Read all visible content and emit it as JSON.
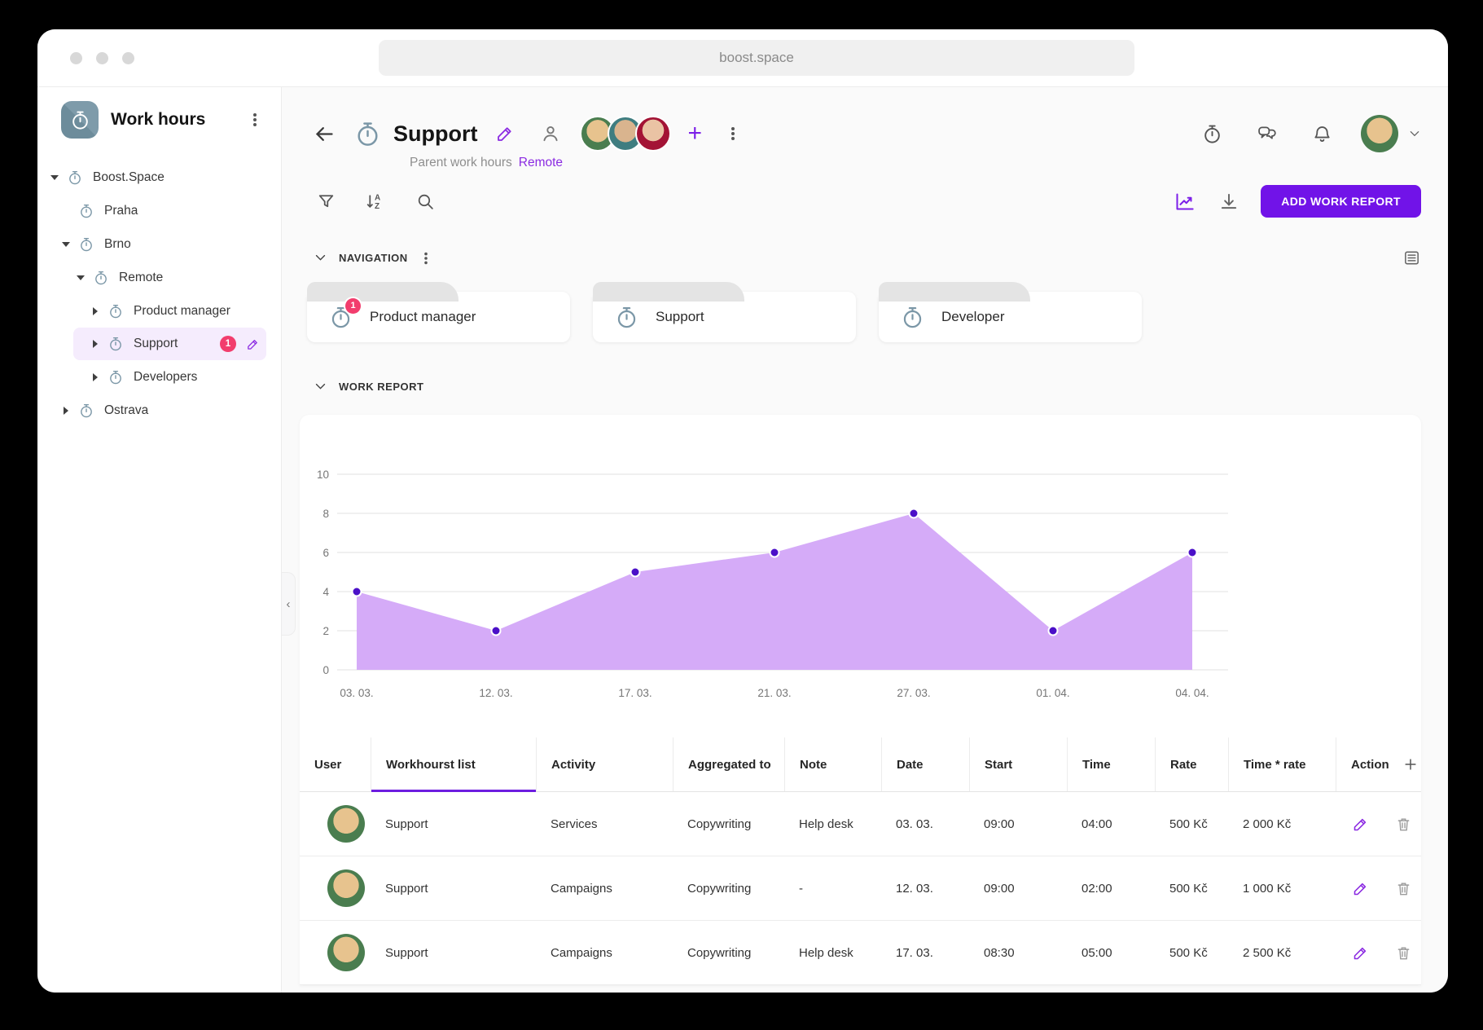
{
  "browser": {
    "url": "boost.space"
  },
  "sidebar": {
    "app_title": "Work hours",
    "tree": [
      {
        "label": "Boost.Space"
      },
      {
        "label": "Praha"
      },
      {
        "label": "Brno"
      },
      {
        "label": "Remote"
      },
      {
        "label": "Product manager"
      },
      {
        "label": "Support",
        "badge": "1"
      },
      {
        "label": "Developers"
      },
      {
        "label": "Ostrava"
      }
    ]
  },
  "page_header": {
    "title": "Support",
    "parent_label": "Parent work hours",
    "parent_link": "Remote"
  },
  "toolbar": {
    "add_button": "ADD WORK REPORT"
  },
  "sections": {
    "navigation": "NAVIGATION",
    "work_report": "WORK REPORT"
  },
  "navigation_cards": [
    {
      "label": "Product manager",
      "badge": "1"
    },
    {
      "label": "Support",
      "badge": ""
    },
    {
      "label": "Developer",
      "badge": ""
    }
  ],
  "chart_data": {
    "type": "area",
    "x": [
      "03. 03.",
      "12. 03.",
      "17. 03.",
      "21. 03.",
      "27. 03.",
      "01. 04.",
      "04. 04."
    ],
    "values": [
      4,
      2,
      5,
      6,
      8,
      2,
      6
    ],
    "ylim": [
      0,
      10
    ],
    "yticks": [
      0,
      2,
      4,
      6,
      8,
      10
    ],
    "grid": true,
    "legend": "none",
    "fill_color": "#d5abf8",
    "point_color": "#4b10c8"
  },
  "table": {
    "columns": [
      "User",
      "Workhourst list",
      "Activity",
      "Aggregated to",
      "Note",
      "Date",
      "Start",
      "Time",
      "Rate",
      "Time * rate",
      "Action"
    ],
    "rows": [
      {
        "list": "Support",
        "activity": "Services",
        "aggregated_to": "Copywriting",
        "note": "Help desk",
        "date": "03. 03.",
        "start": "09:00",
        "time": "04:00",
        "rate": "500 Kč",
        "total": "2 000 Kč"
      },
      {
        "list": "Support",
        "activity": "Campaigns",
        "aggregated_to": "Copywriting",
        "note": "-",
        "date": "12. 03.",
        "start": "09:00",
        "time": "02:00",
        "rate": "500 Kč",
        "total": "1 000 Kč"
      },
      {
        "list": "Support",
        "activity": "Campaigns",
        "aggregated_to": "Copywriting",
        "note": "Help desk",
        "date": "17. 03.",
        "start": "08:30",
        "time": "05:00",
        "rate": "500 Kč",
        "total": "2 500 Kč"
      }
    ]
  },
  "icons": {
    "sort_letters": "A Z"
  },
  "colors": {
    "accent": "#7113e8",
    "badge": "#f23d6d",
    "chart_fill": "#d5abf8",
    "chart_point": "#4b10c8",
    "steel_icon": "#7b97a7",
    "selected_bg": "#f5ecfd"
  }
}
